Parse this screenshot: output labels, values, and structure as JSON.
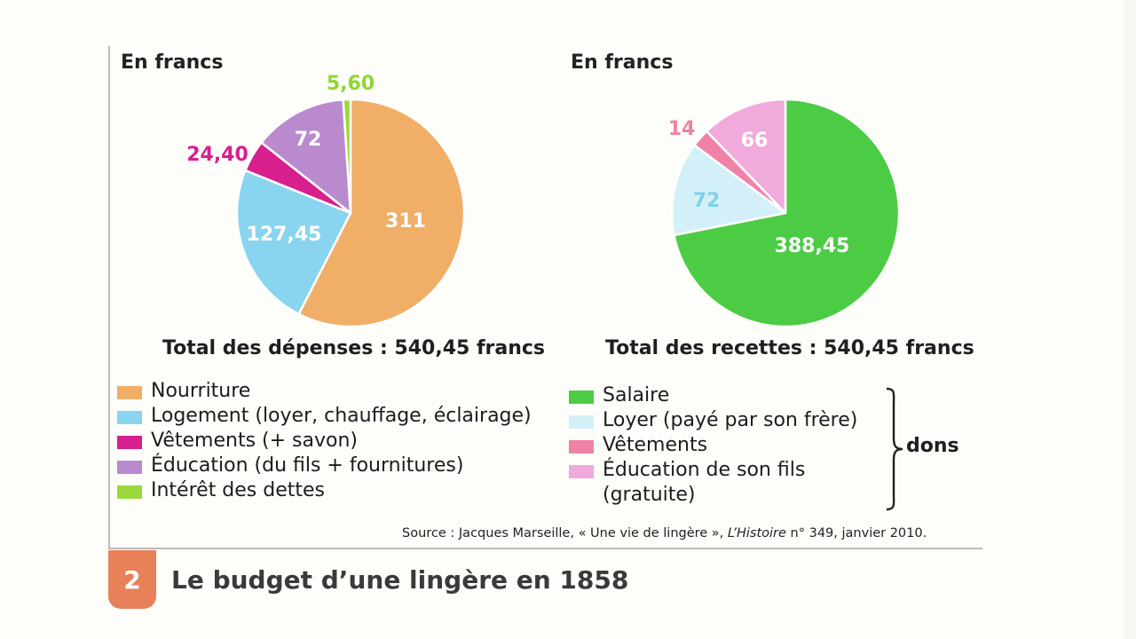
{
  "title": "Le budget d’une lingère en 1858",
  "figure_number": "2",
  "source": {
    "prefix": "Source : Jacques Marseille, « Une vie de lingère », ",
    "journal": "L’Histoire",
    "suffix": " n° 349, janvier 2010."
  },
  "brace_label": "dons",
  "chart_data": [
    {
      "type": "pie",
      "unit_label": "En francs",
      "title": "Total des dépenses : 540,45 francs",
      "slices": [
        {
          "label": "Nourriture",
          "value": 311,
          "value_label": "311",
          "color": "#f0ae67",
          "label_color": "#ffffff"
        },
        {
          "label": "Logement (loyer, chauffage, éclairage)",
          "value": 127.45,
          "value_label": "127,45",
          "color": "#89d4ee",
          "label_color": "#ffffff"
        },
        {
          "label": "Vêtements (+ savon)",
          "value": 24.4,
          "value_label": "24,40",
          "color": "#d81f8e",
          "label_color": "#d81f8e"
        },
        {
          "label": "Éducation (du fils + fournitures)",
          "value": 72,
          "value_label": "72",
          "color": "#b98ace",
          "label_color": "#ffffff"
        },
        {
          "label": "Intérêt des dettes",
          "value": 5.6,
          "value_label": "5,60",
          "color": "#9ad93b",
          "label_color": "#8fd82f"
        }
      ]
    },
    {
      "type": "pie",
      "unit_label": "En francs",
      "title": "Total des recettes : 540,45 francs",
      "slices": [
        {
          "label": "Salaire",
          "value": 388.45,
          "value_label": "388,45",
          "color": "#4ccc44",
          "label_color": "#ffffff"
        },
        {
          "label": "Loyer (payé par son frère)",
          "value": 72,
          "value_label": "72",
          "color": "#d3f0f8",
          "label_color": "#7fd0ec"
        },
        {
          "label": "Vêtements",
          "value": 14,
          "value_label": "14",
          "color": "#ef82a6",
          "label_color": "#ef82a6"
        },
        {
          "label": "Éducation de son fils\n(gratuite)",
          "value": 66,
          "value_label": "66",
          "color": "#f1aadc",
          "label_color": "#ffffff"
        }
      ]
    }
  ]
}
